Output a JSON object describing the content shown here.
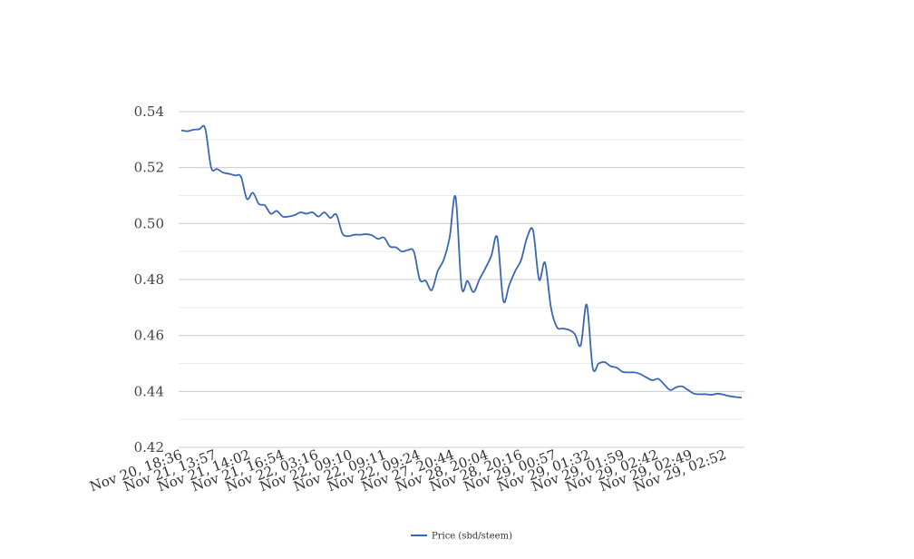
{
  "chart_data": {
    "type": "line",
    "title": "",
    "xlabel": "",
    "ylabel": "",
    "ylim": [
      0.42,
      0.54
    ],
    "yticks": [
      "0.42",
      "0.44",
      "0.46",
      "0.48",
      "0.50",
      "0.52",
      "0.54"
    ],
    "minor_gridlines": true,
    "legend_position": "bottom",
    "x_tick_labels": [
      "Nov 20, 18:36",
      "Nov 21, 13:57",
      "Nov 21, 14:02",
      "Nov 21, 16:54",
      "Nov 22, 03:16",
      "Nov 22, 09:10",
      "Nov 22, 09:11",
      "Nov 22, 09:24",
      "Nov 27, 20:44",
      "Nov 28, 20:04",
      "Nov 28, 20:16",
      "Nov 29, 00:57",
      "Nov 29, 01:32",
      "Nov 29, 01:59",
      "Nov 29, 02:42",
      "Nov 29, 02:49",
      "Nov 29, 02:52"
    ],
    "series": [
      {
        "name": "Price (sbd/steem)",
        "color": "#3a66b6",
        "values": [
          0.5333,
          0.533,
          0.5335,
          0.5337,
          0.534,
          0.52,
          0.5195,
          0.5182,
          0.5178,
          0.5172,
          0.5167,
          0.5088,
          0.511,
          0.507,
          0.5065,
          0.5035,
          0.5045,
          0.5025,
          0.5025,
          0.503,
          0.504,
          0.5035,
          0.504,
          0.5025,
          0.504,
          0.502,
          0.5032,
          0.4965,
          0.4955,
          0.496,
          0.496,
          0.4962,
          0.4958,
          0.4945,
          0.495,
          0.4918,
          0.4915,
          0.49,
          0.4905,
          0.49,
          0.48,
          0.4795,
          0.4762,
          0.483,
          0.487,
          0.495,
          0.5095,
          0.4775,
          0.4795,
          0.4755,
          0.48,
          0.484,
          0.4885,
          0.495,
          0.4725,
          0.478,
          0.483,
          0.487,
          0.495,
          0.4975,
          0.48,
          0.486,
          0.47,
          0.463,
          0.4625,
          0.462,
          0.4605,
          0.4565,
          0.471,
          0.4485,
          0.45,
          0.4505,
          0.449,
          0.4485,
          0.447,
          0.4468,
          0.4468,
          0.4462,
          0.445,
          0.444,
          0.4445,
          0.4425,
          0.4405,
          0.4415,
          0.4418,
          0.4405,
          0.4392,
          0.439,
          0.439,
          0.4388,
          0.4392,
          0.4388,
          0.4383,
          0.438,
          0.4378
        ]
      }
    ]
  }
}
